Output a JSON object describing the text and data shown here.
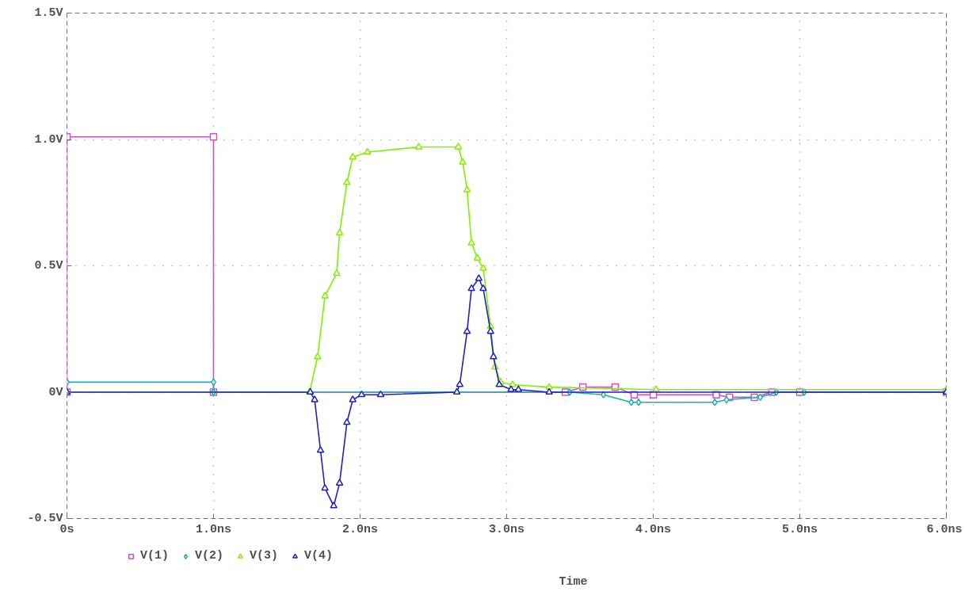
{
  "chart_data": {
    "type": "line",
    "xlabel": "Time",
    "xlim": [
      0,
      6
    ],
    "ylim": [
      -0.5,
      1.5
    ],
    "xticks": [
      {
        "value": 0,
        "label": "0s"
      },
      {
        "value": 1,
        "label": "1.0ns"
      },
      {
        "value": 2,
        "label": "2.0ns"
      },
      {
        "value": 3,
        "label": "3.0ns"
      },
      {
        "value": 4,
        "label": "4.0ns"
      },
      {
        "value": 5,
        "label": "5.0ns"
      },
      {
        "value": 6,
        "label": "6.0ns"
      }
    ],
    "yticks": [
      {
        "value": -0.5,
        "label": "-0.5V"
      },
      {
        "value": 0,
        "label": "0V"
      },
      {
        "value": 0.5,
        "label": "0.5V"
      },
      {
        "value": 1.0,
        "label": "1.0V"
      },
      {
        "value": 1.5,
        "label": "1.5V"
      }
    ],
    "grid": true,
    "legend": "bottom left",
    "line_style": "solid",
    "series": [
      {
        "name": "V(1)",
        "color": "#d050d0",
        "marker": "square",
        "x": [
          0,
          0,
          1.0,
          1.0,
          3.4,
          3.52,
          3.74,
          3.87,
          4.0,
          4.43,
          4.52,
          4.69,
          4.81,
          5.0,
          6.0
        ],
        "values": [
          0,
          1.01,
          1.01,
          0,
          0,
          0.02,
          0.02,
          -0.01,
          -0.01,
          -0.01,
          -0.02,
          -0.02,
          0,
          0,
          0
        ]
      },
      {
        "name": "V(2)",
        "color": "#20b0b0",
        "marker": "diamond",
        "x": [
          0,
          1.0,
          1.0,
          3.43,
          3.66,
          3.85,
          3.9,
          4.42,
          4.5,
          4.73,
          4.84,
          5.03,
          6.0
        ],
        "values": [
          0.04,
          0.04,
          0,
          0,
          -0.01,
          -0.04,
          -0.04,
          -0.04,
          -0.03,
          -0.02,
          0,
          0,
          0
        ]
      },
      {
        "name": "V(3)",
        "color": "#80f000",
        "marker": "triangle",
        "x": [
          0,
          1.655,
          1.71,
          1.76,
          1.84,
          1.86,
          1.91,
          1.95,
          2.05,
          2.4,
          2.67,
          2.7,
          2.73,
          2.76,
          2.8,
          2.84,
          2.89,
          2.92,
          2.96,
          3.04,
          3.29,
          4.02,
          6.0
        ],
        "values": [
          0,
          0,
          0.14,
          0.38,
          0.47,
          0.63,
          0.83,
          0.93,
          0.95,
          0.97,
          0.97,
          0.91,
          0.8,
          0.59,
          0.53,
          0.49,
          0.26,
          0.1,
          0.04,
          0.03,
          0.02,
          0.01,
          0.01
        ]
      },
      {
        "name": "V(4)",
        "color": "#2020c0",
        "marker": "triangle",
        "x": [
          0,
          1.66,
          1.69,
          1.73,
          1.76,
          1.82,
          1.86,
          1.91,
          1.95,
          2.01,
          2.14,
          2.66,
          2.68,
          2.73,
          2.76,
          2.81,
          2.84,
          2.89,
          2.91,
          2.95,
          3.03,
          3.08,
          3.29,
          6.0
        ],
        "values": [
          0,
          0,
          -0.03,
          -0.23,
          -0.38,
          -0.45,
          -0.36,
          -0.12,
          -0.03,
          -0.01,
          -0.01,
          0,
          0.03,
          0.24,
          0.41,
          0.45,
          0.41,
          0.24,
          0.14,
          0.03,
          0.01,
          0.01,
          0,
          0
        ]
      }
    ]
  }
}
